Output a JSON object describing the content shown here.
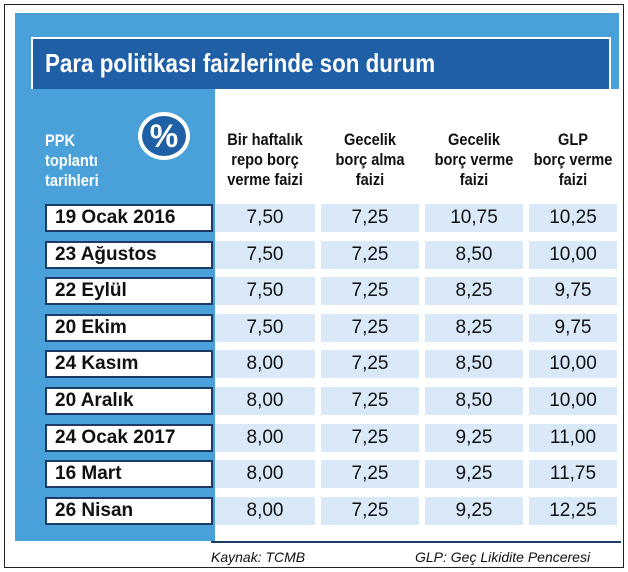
{
  "title": "Para politikası faizlerinde son durum",
  "ppk_label": [
    "PPK",
    "toplantı",
    "tarihleri"
  ],
  "percent_symbol": "%",
  "chart_data": {
    "type": "table",
    "title": "Para politikası faizlerinde son durum",
    "row_header": "PPK toplantı tarihleri",
    "columns": [
      {
        "key": "repo",
        "lines": [
          "Bir haftalık",
          "repo borç",
          "verme faizi"
        ]
      },
      {
        "key": "alma",
        "lines": [
          "Gecelik",
          "borç alma",
          "faizi"
        ]
      },
      {
        "key": "verme",
        "lines": [
          "Gecelik",
          "borç verme",
          "faizi"
        ]
      },
      {
        "key": "glp",
        "lines": [
          "GLP",
          "borç verme",
          "faizi"
        ]
      }
    ],
    "rows": [
      {
        "date": "19 Ocak 2016",
        "values": [
          "7,50",
          "7,25",
          "10,75",
          "10,25"
        ]
      },
      {
        "date": "23 Ağustos",
        "values": [
          "7,50",
          "7,25",
          "8,50",
          "10,00"
        ]
      },
      {
        "date": "22 Eylül",
        "values": [
          "7,50",
          "7,25",
          "8,25",
          "9,75"
        ]
      },
      {
        "date": "20 Ekim",
        "values": [
          "7,50",
          "7,25",
          "8,25",
          "9,75"
        ]
      },
      {
        "date": "24 Kasım",
        "values": [
          "8,00",
          "7,25",
          "8,50",
          "10,00"
        ]
      },
      {
        "date": "20 Aralık",
        "values": [
          "8,00",
          "7,25",
          "8,50",
          "10,00"
        ]
      },
      {
        "date": "24 Ocak 2017",
        "values": [
          "8,00",
          "7,25",
          "9,25",
          "11,00"
        ]
      },
      {
        "date": "16 Mart",
        "values": [
          "8,00",
          "7,25",
          "9,25",
          "11,75"
        ]
      },
      {
        "date": "26 Nisan",
        "values": [
          "8,00",
          "7,25",
          "9,25",
          "12,25"
        ]
      }
    ]
  },
  "footer": {
    "source": "Kaynak: TCMB",
    "note": "GLP: Geç Likidite Penceresi"
  },
  "colors": {
    "panel_blue": "#4aa1da",
    "title_blue": "#1f5fa6",
    "cell_blue": "#d9e9f8",
    "border_navy": "#1c3b66"
  }
}
